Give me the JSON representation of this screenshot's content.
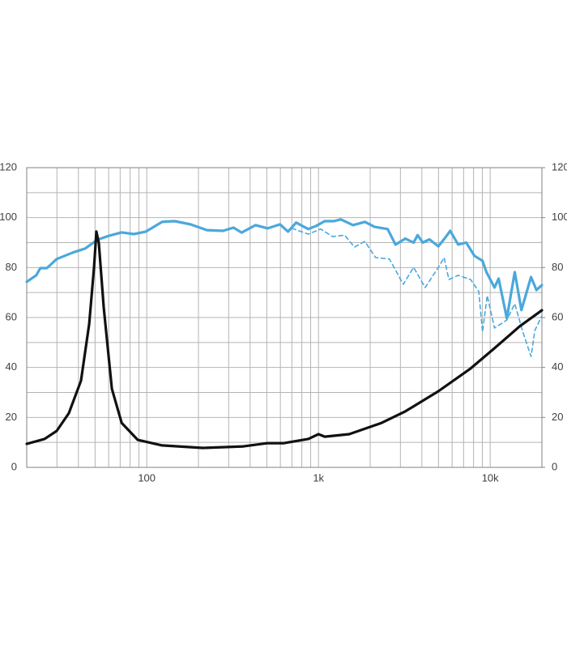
{
  "chart_data": {
    "type": "line",
    "xscale": "log",
    "xlim": [
      20,
      20000
    ],
    "xticks": [
      100,
      {
        "value": 1000,
        "label": "1k"
      },
      {
        "value": 10000,
        "label": "10k"
      }
    ],
    "x_minor_grid": [
      20,
      30,
      40,
      50,
      60,
      70,
      80,
      90,
      200,
      300,
      400,
      500,
      600,
      700,
      800,
      900,
      2000,
      3000,
      4000,
      5000,
      6000,
      7000,
      8000,
      9000,
      20000
    ],
    "ylim": [
      0,
      120
    ],
    "yticks": [
      0,
      20,
      40,
      60,
      80,
      100,
      120
    ],
    "y_minor_grid": [
      10,
      30,
      50,
      70,
      90,
      110
    ],
    "y2lim": [
      0,
      120
    ],
    "y2ticks": [
      0,
      20,
      40,
      60,
      80,
      100,
      120
    ],
    "grid": true,
    "series": [
      {
        "color": "#4aa8dc",
        "dashed": false,
        "x": [
          20,
          22.7,
          24,
          26.2,
          29.9,
          37.1,
          43.7,
          51.5,
          60.6,
          71.4,
          84,
          98.9,
          123,
          145,
          180,
          224,
          278,
          320,
          357,
          430,
          506,
          597,
          665,
          741,
          872,
          971,
          1087,
          1236,
          1349,
          1588,
          1864,
          2120,
          2530,
          2810,
          3200,
          3580,
          3780,
          4050,
          4430,
          4990,
          5450,
          5850,
          6510,
          7250,
          8090,
          9020,
          9500,
          10600,
          11200,
          12500,
          13900,
          15200,
          17300,
          18600,
          20000
        ],
        "values": [
          74.3,
          76.9,
          79.8,
          79.8,
          83.4,
          86,
          87.6,
          91.1,
          92.8,
          94.1,
          93.4,
          94.4,
          98.3,
          98.6,
          97.3,
          95,
          94.7,
          96,
          94,
          97,
          95.7,
          97.3,
          94.4,
          98,
          95.4,
          96.7,
          98.6,
          98.6,
          99.3,
          97,
          98.3,
          96.3,
          95.4,
          89.2,
          91.6,
          90,
          93,
          90,
          91.3,
          88.5,
          91.8,
          94.7,
          89.2,
          90,
          84.7,
          82.7,
          78.2,
          72,
          75.6,
          59.7,
          78.2,
          63,
          76.2,
          71,
          73
        ]
      },
      {
        "color": "#4aa8dc",
        "dashed": true,
        "x": [
          700,
          872,
          1030,
          1210,
          1420,
          1620,
          1860,
          2150,
          2590,
          3120,
          3580,
          4180,
          4990,
          5390,
          5750,
          6510,
          7690,
          8580,
          9020,
          9610,
          10600,
          12500,
          13900,
          15500,
          17300,
          18200,
          20000
        ],
        "values": [
          95.7,
          93.4,
          95.4,
          92.4,
          93,
          88.2,
          90.5,
          84,
          83.4,
          73.3,
          80.1,
          72,
          80.1,
          84,
          75.2,
          76.9,
          75.2,
          70.4,
          54.2,
          68.8,
          55.8,
          59,
          65.5,
          54.2,
          44.4,
          54.8,
          60.7
        ]
      },
      {
        "color": "#111111",
        "dashed": false,
        "x": [
          20,
          25.4,
          29.9,
          35.2,
          41.4,
          46.2,
          49.3,
          50.9,
          52.6,
          56.2,
          62.6,
          71.4,
          88.7,
          123,
          212,
          365,
          506,
          630,
          872,
          1000,
          1087,
          1509,
          2330,
          3200,
          4990,
          7690,
          10600,
          14800,
          20000
        ],
        "values": [
          9.4,
          11.4,
          14.6,
          21.7,
          34.7,
          57.4,
          80.1,
          94.4,
          89.8,
          63.9,
          31.5,
          17.8,
          11,
          8.8,
          7.8,
          8.4,
          9.7,
          9.7,
          11.4,
          13.3,
          12.3,
          13.3,
          17.8,
          22.4,
          30.5,
          39.6,
          47.7,
          56.4,
          62.9
        ]
      }
    ]
  }
}
